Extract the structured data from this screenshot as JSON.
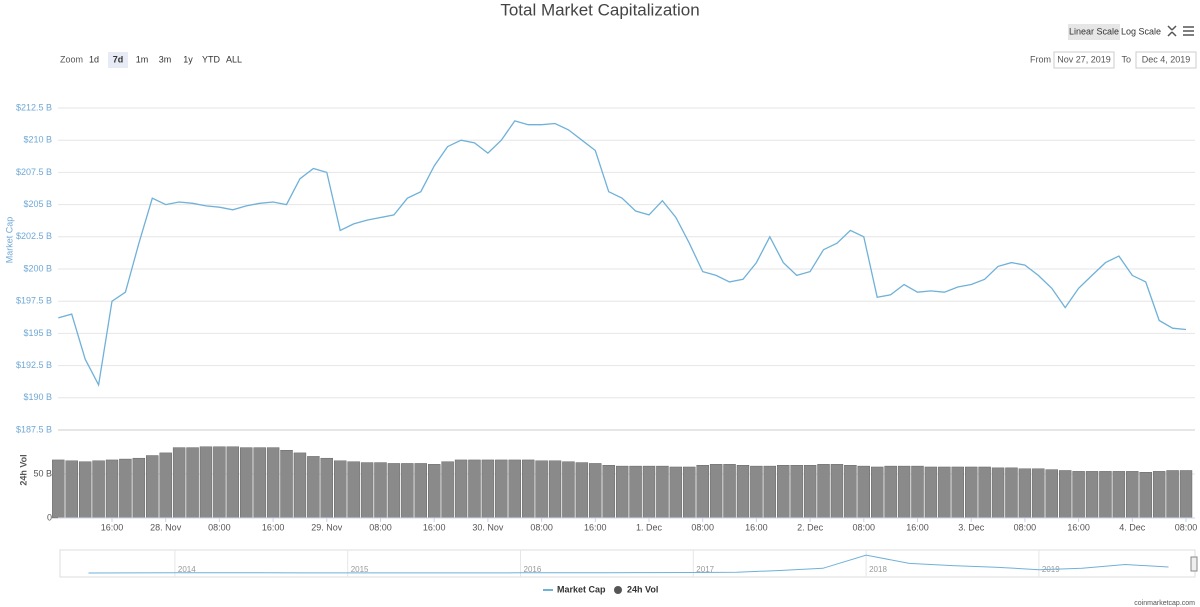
{
  "header": {
    "title": "Total Market Capitalization",
    "scale_buttons": [
      "Linear Scale",
      "Log Scale"
    ],
    "active_scale": 0,
    "zoom_label": "Zoom",
    "zoom_buttons": [
      "1d",
      "7d",
      "1m",
      "3m",
      "1y",
      "YTD",
      "ALL"
    ],
    "active_zoom": 1,
    "from_label": "From",
    "from_date": "Nov 27, 2019",
    "to_label": "To",
    "to_date": "Dec 4, 2019"
  },
  "chart_data": [
    {
      "type": "line",
      "y_label": "Market Cap",
      "grid": true,
      "series": [
        {
          "name": "Market Cap",
          "color": "#6fb1d9",
          "values": [
            196.2,
            196.5,
            193,
            191,
            197.5,
            198.2,
            202,
            205.5,
            205,
            205.2,
            205.1,
            204.9,
            204.8,
            204.6,
            204.9,
            205.1,
            205.2,
            205,
            207,
            207.8,
            207.5,
            203,
            203.5,
            203.8,
            204,
            204.2,
            205.5,
            206,
            208,
            209.5,
            210,
            209.8,
            209,
            210,
            211.5,
            211.2,
            211.2,
            211.3,
            210.8,
            210,
            209.2,
            206,
            205.5,
            204.5,
            204.2,
            205.3,
            204,
            202,
            199.8,
            199.5,
            199,
            199.2,
            200.5,
            202.5,
            200.5,
            199.5,
            199.8,
            201.5,
            202,
            203,
            202.5,
            197.8,
            198,
            198.8,
            198.2,
            198.3,
            198.2,
            198.6,
            198.8,
            199.2,
            200.2,
            200.5,
            200.3,
            199.5,
            198.5,
            197,
            198.5,
            199.5,
            200.5,
            201,
            199.5,
            199,
            196,
            195.4,
            195.3
          ]
        }
      ],
      "ylim": [
        187.5,
        212.5
      ],
      "yticks": [
        {
          "value": 187.5,
          "label": "$187.5 B"
        },
        {
          "value": 190,
          "label": "$190 B"
        },
        {
          "value": 192.5,
          "label": "$192.5 B"
        },
        {
          "value": 195,
          "label": "$195 B"
        },
        {
          "value": 197.5,
          "label": "$197.5 B"
        },
        {
          "value": 200,
          "label": "$200 B"
        },
        {
          "value": 202.5,
          "label": "$202.5 B"
        },
        {
          "value": 205,
          "label": "$205 B"
        },
        {
          "value": 207.5,
          "label": "$207.5 B"
        },
        {
          "value": 210,
          "label": "$210 B"
        },
        {
          "value": 212.5,
          "label": "$212.5 B"
        }
      ]
    },
    {
      "type": "bar",
      "y_label": "24h Vol",
      "grid": true,
      "categories": [
        null,
        null,
        null,
        null,
        "16:00",
        null,
        null,
        null,
        "28. Nov",
        null,
        null,
        null,
        "08:00",
        null,
        null,
        null,
        "16:00",
        null,
        null,
        null,
        "29. Nov",
        null,
        null,
        null,
        "08:00",
        null,
        null,
        null,
        "16:00",
        null,
        null,
        null,
        "30. Nov",
        null,
        null,
        null,
        "08:00",
        null,
        null,
        null,
        "16:00",
        null,
        null,
        null,
        "1. Dec",
        null,
        null,
        null,
        "08:00",
        null,
        null,
        null,
        "16:00",
        null,
        null,
        null,
        "2. Dec",
        null,
        null,
        null,
        "08:00",
        null,
        null,
        null,
        "16:00",
        null,
        null,
        null,
        "3. Dec",
        null,
        null,
        null,
        "08:00",
        null,
        null,
        null,
        "16:00",
        null,
        null,
        null,
        "4. Dec",
        null,
        null,
        null,
        "08:00"
      ],
      "series": [
        {
          "name": "24h Vol",
          "color": "#8a8a8a",
          "values": [
            66,
            65,
            64,
            65,
            66,
            67,
            68,
            71,
            74,
            80,
            80,
            81,
            81,
            81,
            80,
            80,
            80,
            77,
            74,
            70,
            68,
            65,
            64,
            63,
            63,
            62,
            62,
            62,
            61,
            64,
            66,
            66,
            66,
            66,
            66,
            66,
            65,
            65,
            64,
            63,
            62,
            60,
            59,
            59,
            59,
            59,
            58,
            58,
            60,
            61,
            61,
            60,
            59,
            59,
            60,
            60,
            60,
            61,
            61,
            60,
            59,
            58,
            59,
            59,
            59,
            58,
            58,
            58,
            58,
            58,
            57,
            57,
            56,
            56,
            55,
            54,
            53,
            53,
            53,
            53,
            53,
            52,
            53,
            54,
            54
          ]
        }
      ],
      "ylim": [
        0,
        100
      ],
      "yticks": [
        0,
        {
          "value": 50,
          "label": "50 B"
        }
      ]
    },
    {
      "type": "area",
      "categories": [
        null,
        null,
        "2014",
        null,
        null,
        null,
        "2015",
        null,
        null,
        null,
        "2016",
        null,
        null,
        null,
        "2017",
        null,
        null,
        null,
        "2018",
        null,
        null,
        null,
        "2019",
        null,
        null,
        null
      ],
      "color": "#6fb1d9",
      "values": [
        1,
        2,
        10,
        6,
        8,
        5,
        4,
        3.5,
        4,
        4,
        7,
        7,
        11,
        13,
        18,
        30,
        90,
        170,
        650,
        350,
        270,
        210,
        120,
        170,
        310,
        220
      ],
      "ylim": [
        0,
        800
      ]
    }
  ],
  "footer": {
    "credit": "coinmarketcap.com"
  }
}
